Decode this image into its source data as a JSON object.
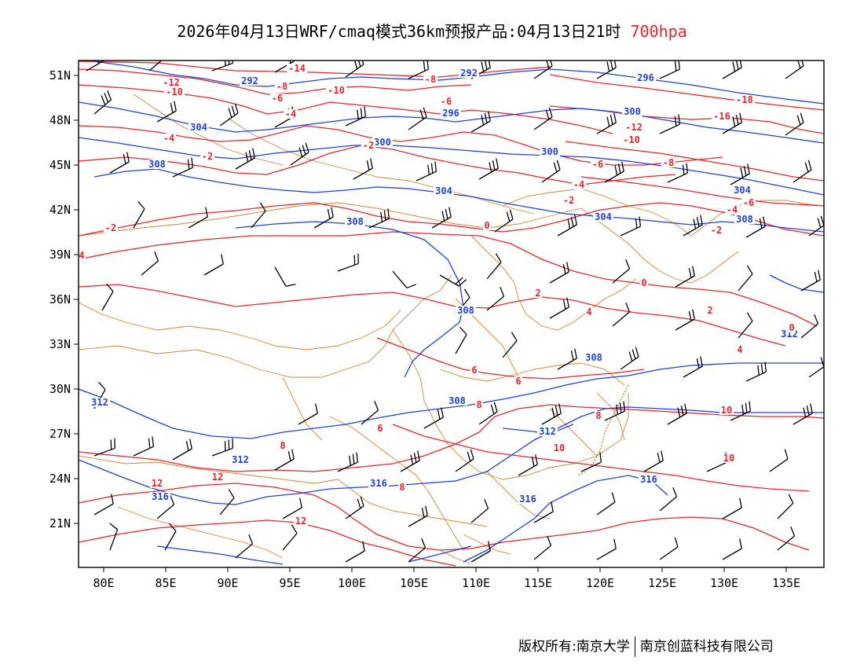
{
  "title": {
    "main": "2026年04月13日WRF/cmaq模式36km预报产品:04月13日21时",
    "level": "700hpa"
  },
  "axes": {
    "lat_labels": [
      "51N",
      "48N",
      "45N",
      "42N",
      "39N",
      "36N",
      "33N",
      "30N",
      "27N",
      "24N",
      "21N"
    ],
    "lon_labels": [
      "80E",
      "85E",
      "90E",
      "95E",
      "100E",
      "105E",
      "110E",
      "115E",
      "120E",
      "125E",
      "130E",
      "135E"
    ]
  },
  "contours": {
    "geopotential_color": "#1f3fe0",
    "temperature_color": "#e8242c",
    "border_color": "#d2843a",
    "barb_color": "#000000",
    "geopotential_labels": [
      "292",
      "292",
      "296",
      "296",
      "300",
      "300",
      "300",
      "304",
      "304",
      "304",
      "304",
      "308",
      "308",
      "308",
      "308",
      "308",
      "308",
      "312",
      "312",
      "312",
      "312",
      "316",
      "316",
      "316",
      "316"
    ],
    "temperature_labels": [
      "-14",
      "-12",
      "-10",
      "-10",
      "-8",
      "-8",
      "-6",
      "-6",
      "-6",
      "-4",
      "-4",
      "-2",
      "-2",
      "-2",
      "-18",
      "-16",
      "-12",
      "-10",
      "-8",
      "-6",
      "-4",
      "-4",
      "-2",
      "-2",
      "0",
      "0",
      "0",
      "2",
      "2",
      "4",
      "4",
      "4",
      "6",
      "6",
      "6",
      "8",
      "8",
      "8",
      "10",
      "10",
      "10",
      "12",
      "12",
      "12",
      "8"
    ]
  },
  "footer": {
    "left": "版权所有:南京大学",
    "right": "南京创蓝科技有限公司"
  }
}
